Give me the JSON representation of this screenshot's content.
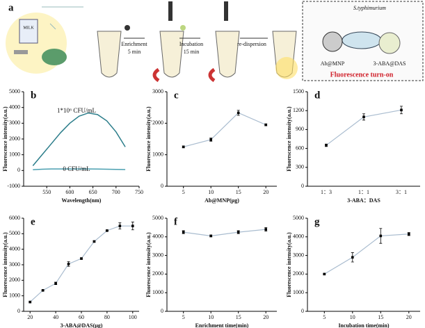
{
  "schematic": {
    "panel": "a",
    "milk": "MILK",
    "step1": "Enrichment",
    "step1_time": "5 min",
    "step2": "Incubation",
    "step2_time": "15 min",
    "step3": "re-dispersion",
    "bacteria": "S.typhimurium",
    "probe1": "Ab@MNP",
    "probe2": "3-ABA@DAS",
    "result": "Fluorescence turn-on"
  },
  "chart_data": [
    {
      "type": "line",
      "panel": "b",
      "xlabel": "Wavelength(nm)",
      "ylabel": "Fluorescence intensity(a.u.)",
      "x": [
        520,
        540,
        560,
        580,
        600,
        620,
        640,
        660,
        680,
        700,
        720
      ],
      "xlim": [
        500,
        750
      ],
      "xticks": [
        550,
        600,
        650,
        700,
        750
      ],
      "ylim": [
        -1000,
        5000
      ],
      "yticks": [
        -1000,
        0,
        1000,
        2000,
        3000,
        4000,
        5000
      ],
      "series": [
        {
          "name": "1*10⁶ CFU/mL",
          "color": "#2b7d8a",
          "values": [
            300,
            1000,
            1700,
            2400,
            3000,
            3450,
            3650,
            3550,
            3150,
            2450,
            1500
          ]
        },
        {
          "name": "0 CFU/mL",
          "color": "#4a9fb0",
          "values": [
            50,
            80,
            100,
            100,
            100,
            100,
            100,
            90,
            80,
            70,
            60
          ]
        }
      ]
    },
    {
      "type": "line",
      "panel": "c",
      "xlabel": "Ab@MNP(μg)",
      "ylabel": "Fluorescence intensity(a.u.)",
      "x": [
        5,
        10,
        15,
        20
      ],
      "xlim": [
        2,
        22
      ],
      "xticks": [
        5,
        10,
        15,
        20
      ],
      "ylim": [
        0,
        3000
      ],
      "yticks": [
        0,
        1000,
        2000,
        3000
      ],
      "color": "#a9bccf",
      "values": [
        1250,
        1480,
        2330,
        1950
      ],
      "errors": [
        30,
        50,
        80,
        30
      ]
    },
    {
      "type": "line",
      "panel": "d",
      "xlabel": "3-ABA：DAS",
      "ylabel": "Fluorescence intensity(a.u.)",
      "categories": [
        "1：3",
        "1：1",
        "3：1"
      ],
      "ylim": [
        0,
        1500
      ],
      "yticks": [
        0,
        300,
        600,
        900,
        1200,
        1500
      ],
      "color": "#a9bccf",
      "values": [
        650,
        1100,
        1210
      ],
      "errors": [
        20,
        50,
        60
      ]
    },
    {
      "type": "line",
      "panel": "e",
      "xlabel": "3-ABA@DAS(μg)",
      "ylabel": "Fluorescence intensity(a.u.)",
      "x": [
        20,
        30,
        40,
        50,
        60,
        70,
        80,
        90,
        100
      ],
      "xlim": [
        15,
        105
      ],
      "xticks": [
        20,
        40,
        60,
        80,
        100
      ],
      "ylim": [
        0,
        6000
      ],
      "yticks": [
        0,
        1000,
        2000,
        3000,
        4000,
        5000,
        6000
      ],
      "color": "#a9bccf",
      "values": [
        600,
        1350,
        1800,
        3050,
        3400,
        4500,
        5200,
        5500,
        5500
      ],
      "errors": [
        50,
        30,
        80,
        150,
        50,
        50,
        30,
        200,
        250
      ]
    },
    {
      "type": "line",
      "panel": "f",
      "xlabel": "Enrichment time(min)",
      "ylabel": "Fluorescence intensity(a.u.)",
      "x": [
        5,
        10,
        15,
        20
      ],
      "xlim": [
        2,
        22
      ],
      "xticks": [
        5,
        10,
        15,
        20
      ],
      "ylim": [
        0,
        5000
      ],
      "yticks": [
        0,
        1000,
        2000,
        3000,
        4000,
        5000
      ],
      "color": "#a9bccf",
      "values": [
        4250,
        4050,
        4250,
        4400
      ],
      "errors": [
        80,
        50,
        80,
        100
      ]
    },
    {
      "type": "line",
      "panel": "g",
      "xlabel": "Incubation time(min)",
      "ylabel": "Fluorescence intensity(a.u.)",
      "x": [
        5,
        10,
        15,
        20
      ],
      "xlim": [
        2,
        22
      ],
      "xticks": [
        5,
        10,
        15,
        20
      ],
      "ylim": [
        0,
        5000
      ],
      "yticks": [
        0,
        1000,
        2000,
        3000,
        4000,
        5000
      ],
      "color": "#a9bccf",
      "values": [
        2000,
        2900,
        4050,
        4150
      ],
      "errors": [
        30,
        250,
        400,
        80
      ]
    }
  ]
}
